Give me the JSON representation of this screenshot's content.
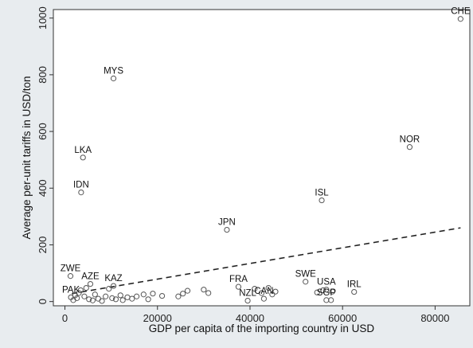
{
  "chart_data": {
    "type": "scatter",
    "title": "",
    "xlabel": "GDP per capita of the importing country in USD",
    "ylabel": "Average per-unit tariffs in USD/ton",
    "xlim": [
      -2500,
      87500
    ],
    "ylim": [
      -15,
      1030
    ],
    "x_ticks": [
      0,
      20000,
      40000,
      60000,
      80000
    ],
    "y_ticks": [
      0,
      200,
      400,
      600,
      800,
      1000
    ],
    "grid": false,
    "legend": "none",
    "colors": {
      "background": "#e8ecef",
      "plot_area": "#ffffff",
      "points": "#555555",
      "fit_line": "#222222"
    },
    "fit_line": {
      "style": "dashed",
      "x": [
        1500,
        85500
      ],
      "y": [
        28,
        260
      ]
    },
    "labeled_points": [
      {
        "label": "CHE",
        "x": 85500,
        "y": 997
      },
      {
        "label": "MYS",
        "x": 10500,
        "y": 787
      },
      {
        "label": "NOR",
        "x": 74500,
        "y": 545
      },
      {
        "label": "LKA",
        "x": 3900,
        "y": 508
      },
      {
        "label": "IDN",
        "x": 3500,
        "y": 385
      },
      {
        "label": "ISL",
        "x": 55500,
        "y": 357
      },
      {
        "label": "JPN",
        "x": 35000,
        "y": 253
      },
      {
        "label": "ZWE",
        "x": 1200,
        "y": 90
      },
      {
        "label": "AZE",
        "x": 5500,
        "y": 62
      },
      {
        "label": "KAZ",
        "x": 10500,
        "y": 55
      },
      {
        "label": "FRA",
        "x": 37500,
        "y": 52
      },
      {
        "label": "SWE",
        "x": 52000,
        "y": 70
      },
      {
        "label": "USA",
        "x": 56500,
        "y": 42
      },
      {
        "label": "IRL",
        "x": 62500,
        "y": 34
      },
      {
        "label": "PAK",
        "x": 1300,
        "y": 15
      },
      {
        "label": "NZL",
        "x": 39500,
        "y": 3
      },
      {
        "label": "CAN",
        "x": 43000,
        "y": 10
      },
      {
        "label": "SGP",
        "x": 56500,
        "y": 5
      }
    ],
    "unlabeled_points": [
      {
        "x": 1800,
        "y": 5
      },
      {
        "x": 2200,
        "y": 22
      },
      {
        "x": 2600,
        "y": 12
      },
      {
        "x": 3000,
        "y": 30
      },
      {
        "x": 3400,
        "y": 40
      },
      {
        "x": 4200,
        "y": 18
      },
      {
        "x": 4600,
        "y": 48
      },
      {
        "x": 5200,
        "y": 8
      },
      {
        "x": 6000,
        "y": 4
      },
      {
        "x": 6500,
        "y": 25
      },
      {
        "x": 7200,
        "y": 10
      },
      {
        "x": 8000,
        "y": 2
      },
      {
        "x": 8800,
        "y": 18
      },
      {
        "x": 9500,
        "y": 45
      },
      {
        "x": 10200,
        "y": 12
      },
      {
        "x": 11000,
        "y": 8
      },
      {
        "x": 12000,
        "y": 22
      },
      {
        "x": 12500,
        "y": 5
      },
      {
        "x": 13500,
        "y": 15
      },
      {
        "x": 14500,
        "y": 10
      },
      {
        "x": 15500,
        "y": 18
      },
      {
        "x": 17000,
        "y": 25
      },
      {
        "x": 18000,
        "y": 8
      },
      {
        "x": 19000,
        "y": 28
      },
      {
        "x": 21000,
        "y": 20
      },
      {
        "x": 24500,
        "y": 18
      },
      {
        "x": 25500,
        "y": 28
      },
      {
        "x": 26500,
        "y": 38
      },
      {
        "x": 30000,
        "y": 42
      },
      {
        "x": 31000,
        "y": 30
      },
      {
        "x": 41000,
        "y": 45
      },
      {
        "x": 42500,
        "y": 30
      },
      {
        "x": 44000,
        "y": 48
      },
      {
        "x": 44800,
        "y": 25
      },
      {
        "x": 45500,
        "y": 35
      },
      {
        "x": 54500,
        "y": 32
      },
      {
        "x": 55800,
        "y": 40
      },
      {
        "x": 57500,
        "y": 5
      },
      {
        "x": 57800,
        "y": 35
      }
    ]
  }
}
